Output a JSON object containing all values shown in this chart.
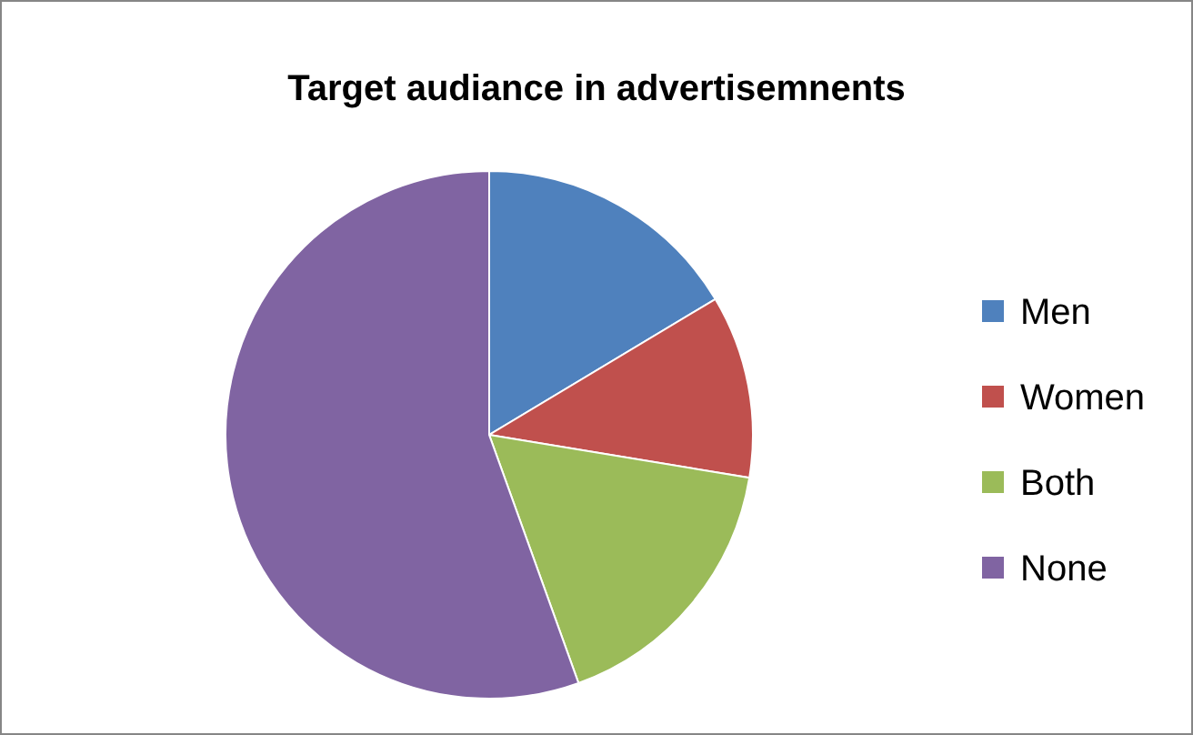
{
  "chart_data": {
    "type": "pie",
    "title": "Target audiance in advertisemnents",
    "categories": [
      "Men",
      "Women",
      "Both",
      "None"
    ],
    "values": [
      16.4,
      11.2,
      16.9,
      55.5
    ],
    "colors": [
      "#4f81bd",
      "#c0504d",
      "#9bbb59",
      "#8064a2"
    ],
    "legend": "right"
  }
}
